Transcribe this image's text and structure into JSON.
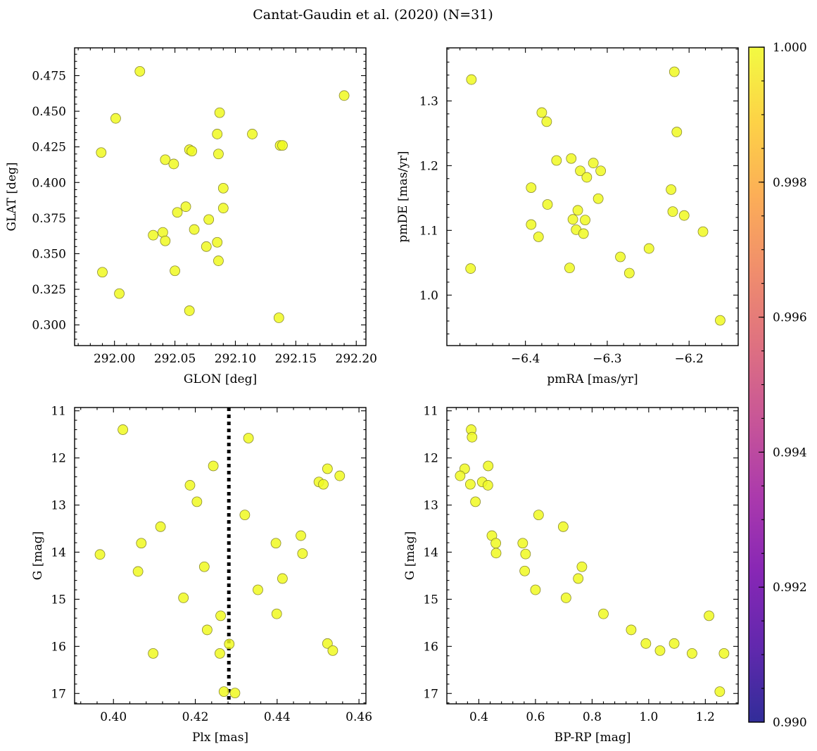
{
  "figure_title": "Cantat-Gaudin et al. (2020) (N=31)",
  "point_color": "#F0F921",
  "chart_data": [
    {
      "type": "scatter",
      "xlabel": "GLON [deg]",
      "ylabel": "GLAT [deg]",
      "xlim": [
        291.967,
        292.208
      ],
      "ylim": [
        0.2855,
        0.4945
      ],
      "xticks": [
        292.0,
        292.05,
        292.1,
        292.15,
        292.2
      ],
      "xtick_labels": [
        "292.00",
        "292.05",
        "292.10",
        "292.15",
        "292.20"
      ],
      "yticks": [
        0.3,
        0.325,
        0.35,
        0.375,
        0.4,
        0.425,
        0.45,
        0.475
      ],
      "ytick_labels": [
        "0.300",
        "0.325",
        "0.350",
        "0.375",
        "0.400",
        "0.425",
        "0.450",
        "0.475"
      ],
      "invert_y": false,
      "vline": null,
      "points": [
        {
          "x": 292.021,
          "y": 0.478
        },
        {
          "x": 292.19,
          "y": 0.461
        },
        {
          "x": 292.001,
          "y": 0.445
        },
        {
          "x": 292.087,
          "y": 0.449
        },
        {
          "x": 292.085,
          "y": 0.434
        },
        {
          "x": 292.114,
          "y": 0.434
        },
        {
          "x": 292.137,
          "y": 0.426
        },
        {
          "x": 292.139,
          "y": 0.426
        },
        {
          "x": 291.989,
          "y": 0.421
        },
        {
          "x": 292.062,
          "y": 0.423
        },
        {
          "x": 292.064,
          "y": 0.422
        },
        {
          "x": 292.086,
          "y": 0.42
        },
        {
          "x": 292.042,
          "y": 0.416
        },
        {
          "x": 292.049,
          "y": 0.413
        },
        {
          "x": 292.09,
          "y": 0.396
        },
        {
          "x": 292.059,
          "y": 0.383
        },
        {
          "x": 292.09,
          "y": 0.382
        },
        {
          "x": 292.052,
          "y": 0.379
        },
        {
          "x": 292.078,
          "y": 0.374
        },
        {
          "x": 292.066,
          "y": 0.367
        },
        {
          "x": 292.04,
          "y": 0.365
        },
        {
          "x": 292.032,
          "y": 0.363
        },
        {
          "x": 292.042,
          "y": 0.359
        },
        {
          "x": 292.085,
          "y": 0.358
        },
        {
          "x": 292.076,
          "y": 0.355
        },
        {
          "x": 292.086,
          "y": 0.345
        },
        {
          "x": 292.05,
          "y": 0.338
        },
        {
          "x": 291.99,
          "y": 0.337
        },
        {
          "x": 292.004,
          "y": 0.322
        },
        {
          "x": 292.062,
          "y": 0.31
        },
        {
          "x": 292.136,
          "y": 0.305
        }
      ]
    },
    {
      "type": "scatter",
      "xlabel": "pmRA [mas/yr]",
      "ylabel": "pmDE [mas/yr]",
      "xlim": [
        -6.496,
        -6.14
      ],
      "ylim": [
        0.922,
        1.382
      ],
      "xticks": [
        -6.4,
        -6.3,
        -6.2
      ],
      "xtick_labels": [
        "−6.4",
        "−6.3",
        "−6.2"
      ],
      "yticks": [
        1.0,
        1.1,
        1.2,
        1.3
      ],
      "ytick_labels": [
        "1.0",
        "1.1",
        "1.2",
        "1.3"
      ],
      "invert_y": false,
      "vline": null,
      "points": [
        {
          "x": -6.218,
          "y": 1.345
        },
        {
          "x": -6.466,
          "y": 1.333
        },
        {
          "x": -6.38,
          "y": 1.282
        },
        {
          "x": -6.374,
          "y": 1.268
        },
        {
          "x": -6.215,
          "y": 1.252
        },
        {
          "x": -6.362,
          "y": 1.208
        },
        {
          "x": -6.344,
          "y": 1.211
        },
        {
          "x": -6.317,
          "y": 1.204
        },
        {
          "x": -6.333,
          "y": 1.192
        },
        {
          "x": -6.308,
          "y": 1.192
        },
        {
          "x": -6.325,
          "y": 1.182
        },
        {
          "x": -6.393,
          "y": 1.166
        },
        {
          "x": -6.222,
          "y": 1.163
        },
        {
          "x": -6.311,
          "y": 1.149
        },
        {
          "x": -6.373,
          "y": 1.14
        },
        {
          "x": -6.336,
          "y": 1.131
        },
        {
          "x": -6.22,
          "y": 1.129
        },
        {
          "x": -6.206,
          "y": 1.123
        },
        {
          "x": -6.342,
          "y": 1.117
        },
        {
          "x": -6.327,
          "y": 1.116
        },
        {
          "x": -6.393,
          "y": 1.109
        },
        {
          "x": -6.338,
          "y": 1.101
        },
        {
          "x": -6.183,
          "y": 1.098
        },
        {
          "x": -6.329,
          "y": 1.095
        },
        {
          "x": -6.384,
          "y": 1.09
        },
        {
          "x": -6.249,
          "y": 1.072
        },
        {
          "x": -6.284,
          "y": 1.059
        },
        {
          "x": -6.467,
          "y": 1.041
        },
        {
          "x": -6.346,
          "y": 1.042
        },
        {
          "x": -6.273,
          "y": 1.034
        },
        {
          "x": -6.162,
          "y": 0.961
        }
      ]
    },
    {
      "type": "scatter",
      "xlabel": "Plx [mas]",
      "ylabel": "G [mag]",
      "xlim": [
        0.3905,
        0.4617
      ],
      "ylim": [
        10.93,
        17.22
      ],
      "xticks": [
        0.4,
        0.42,
        0.44,
        0.46
      ],
      "xtick_labels": [
        "0.40",
        "0.42",
        "0.44",
        "0.46"
      ],
      "yticks": [
        11,
        12,
        13,
        14,
        15,
        16,
        17
      ],
      "ytick_labels": [
        "11",
        "12",
        "13",
        "14",
        "15",
        "16",
        "17"
      ],
      "invert_y": true,
      "vline": 0.4282,
      "points": [
        {
          "x": 0.4023,
          "y": 11.4
        },
        {
          "x": 0.433,
          "y": 11.58
        },
        {
          "x": 0.4244,
          "y": 12.17
        },
        {
          "x": 0.4523,
          "y": 12.23
        },
        {
          "x": 0.4553,
          "y": 12.38
        },
        {
          "x": 0.4502,
          "y": 12.51
        },
        {
          "x": 0.4513,
          "y": 12.56
        },
        {
          "x": 0.4187,
          "y": 12.58
        },
        {
          "x": 0.4204,
          "y": 12.93
        },
        {
          "x": 0.4321,
          "y": 13.21
        },
        {
          "x": 0.4115,
          "y": 13.46
        },
        {
          "x": 0.4458,
          "y": 13.65
        },
        {
          "x": 0.4068,
          "y": 13.81
        },
        {
          "x": 0.4397,
          "y": 13.81
        },
        {
          "x": 0.4462,
          "y": 14.03
        },
        {
          "x": 0.3967,
          "y": 14.05
        },
        {
          "x": 0.4222,
          "y": 14.31
        },
        {
          "x": 0.406,
          "y": 14.41
        },
        {
          "x": 0.4413,
          "y": 14.56
        },
        {
          "x": 0.4353,
          "y": 14.8
        },
        {
          "x": 0.4171,
          "y": 14.97
        },
        {
          "x": 0.4399,
          "y": 15.31
        },
        {
          "x": 0.4262,
          "y": 15.35
        },
        {
          "x": 0.4229,
          "y": 15.65
        },
        {
          "x": 0.4523,
          "y": 15.94
        },
        {
          "x": 0.4283,
          "y": 15.95
        },
        {
          "x": 0.4536,
          "y": 16.09
        },
        {
          "x": 0.4097,
          "y": 16.15
        },
        {
          "x": 0.426,
          "y": 16.15
        },
        {
          "x": 0.427,
          "y": 16.96
        },
        {
          "x": 0.4297,
          "y": 16.99
        }
      ]
    },
    {
      "type": "scatter",
      "xlabel": "BP-RP [mag]",
      "ylabel": "G [mag]",
      "xlim": [
        0.287,
        1.316
      ],
      "ylim": [
        10.93,
        17.22
      ],
      "xticks": [
        0.4,
        0.6,
        0.8,
        1.0,
        1.2
      ],
      "xtick_labels": [
        "0.4",
        "0.6",
        "0.8",
        "1.0",
        "1.2"
      ],
      "yticks": [
        11,
        12,
        13,
        14,
        15,
        16,
        17
      ],
      "ytick_labels": [
        "11",
        "12",
        "13",
        "14",
        "15",
        "16",
        "17"
      ],
      "invert_y": true,
      "vline": null,
      "points": [
        {
          "x": 0.373,
          "y": 11.4
        },
        {
          "x": 0.376,
          "y": 11.56
        },
        {
          "x": 0.433,
          "y": 12.17
        },
        {
          "x": 0.35,
          "y": 12.23
        },
        {
          "x": 0.334,
          "y": 12.38
        },
        {
          "x": 0.412,
          "y": 12.51
        },
        {
          "x": 0.37,
          "y": 12.56
        },
        {
          "x": 0.432,
          "y": 12.58
        },
        {
          "x": 0.388,
          "y": 12.93
        },
        {
          "x": 0.611,
          "y": 13.21
        },
        {
          "x": 0.698,
          "y": 13.46
        },
        {
          "x": 0.446,
          "y": 13.65
        },
        {
          "x": 0.555,
          "y": 13.81
        },
        {
          "x": 0.46,
          "y": 13.81
        },
        {
          "x": 0.565,
          "y": 14.04
        },
        {
          "x": 0.461,
          "y": 14.02
        },
        {
          "x": 0.764,
          "y": 14.31
        },
        {
          "x": 0.562,
          "y": 14.4
        },
        {
          "x": 0.751,
          "y": 14.56
        },
        {
          "x": 0.6,
          "y": 14.8
        },
        {
          "x": 0.708,
          "y": 14.97
        },
        {
          "x": 0.84,
          "y": 15.31
        },
        {
          "x": 1.213,
          "y": 15.35
        },
        {
          "x": 0.938,
          "y": 15.65
        },
        {
          "x": 0.99,
          "y": 15.94
        },
        {
          "x": 1.09,
          "y": 15.94
        },
        {
          "x": 1.04,
          "y": 16.09
        },
        {
          "x": 1.153,
          "y": 16.15
        },
        {
          "x": 1.266,
          "y": 16.15
        },
        {
          "x": 1.251,
          "y": 16.96
        }
      ]
    }
  ],
  "colorbar": {
    "range": [
      0.99,
      1.0
    ],
    "ticks": [
      0.99,
      0.992,
      0.994,
      0.996,
      0.998,
      1.0
    ],
    "tick_labels": [
      "0.990",
      "0.992",
      "0.994",
      "0.996",
      "0.998",
      "1.000"
    ],
    "colormap": "plasma"
  }
}
